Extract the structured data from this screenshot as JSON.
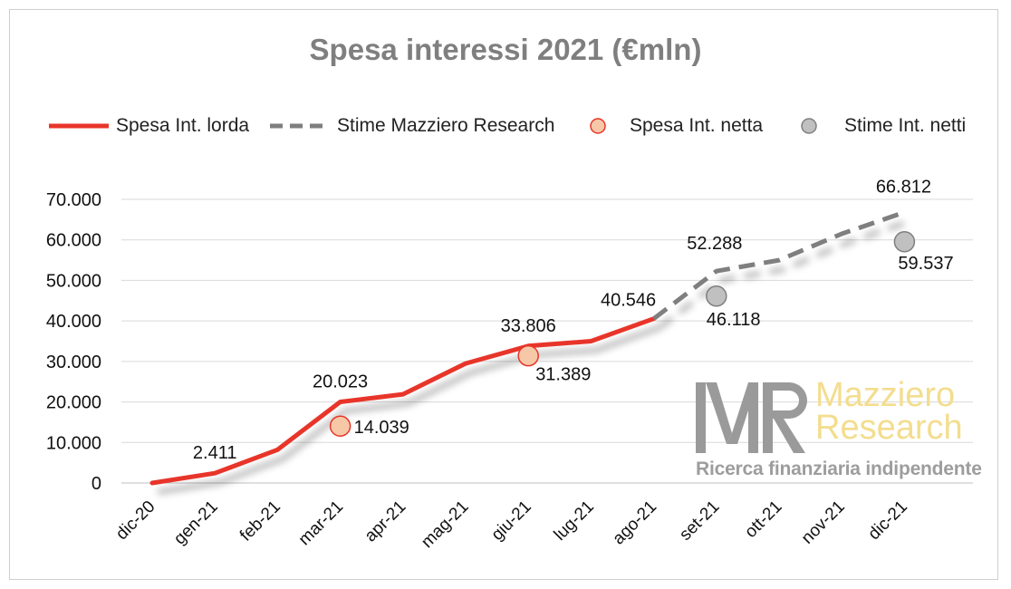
{
  "chart_data": {
    "type": "line",
    "title": "Spesa interessi 2021 (€mln)",
    "categories": [
      "dic-20",
      "gen-21",
      "feb-21",
      "mar-21",
      "apr-21",
      "mag-21",
      "giu-21",
      "lug-21",
      "ago-21",
      "set-21",
      "ott-21",
      "nov-21",
      "dic-21"
    ],
    "y_ticks": [
      "0",
      "10.000",
      "20.000",
      "30.000",
      "40.000",
      "50.000",
      "60.000",
      "70.000"
    ],
    "ylim": [
      0,
      70000
    ],
    "grid": true,
    "legend_position": "top",
    "series": [
      {
        "name": "Spesa Int. lorda",
        "style": "solid-line",
        "color": "#e8352a",
        "values": [
          0,
          2411,
          8200,
          20023,
          21900,
          29500,
          33806,
          35000,
          40546,
          null,
          null,
          null,
          null
        ],
        "labels": [
          null,
          "2.411",
          null,
          "20.023",
          null,
          null,
          "33.806",
          null,
          "40.546",
          null,
          null,
          null,
          null
        ]
      },
      {
        "name": "Stime Mazziero Research",
        "style": "dashed-line",
        "color": "#7f7f7f",
        "values": [
          null,
          null,
          null,
          null,
          null,
          null,
          null,
          null,
          40546,
          52288,
          55000,
          61500,
          66812
        ],
        "labels": [
          null,
          null,
          null,
          null,
          null,
          null,
          null,
          null,
          null,
          "52.288",
          null,
          null,
          "66.812"
        ]
      },
      {
        "name": "Spesa Int. netta",
        "style": "marker",
        "color": "#f7c8a8",
        "edge": "#e8352a",
        "values": [
          null,
          null,
          null,
          14039,
          null,
          null,
          31389,
          null,
          null,
          null,
          null,
          null,
          null
        ],
        "labels": [
          null,
          null,
          null,
          "14.039",
          null,
          null,
          "31.389",
          null,
          null,
          null,
          null,
          null,
          null
        ]
      },
      {
        "name": "Stime Int. netti",
        "style": "marker",
        "color": "#c0c0c0",
        "edge": "#7f7f7f",
        "values": [
          null,
          null,
          null,
          null,
          null,
          null,
          null,
          null,
          null,
          46118,
          null,
          null,
          59537
        ],
        "labels": [
          null,
          null,
          null,
          null,
          null,
          null,
          null,
          null,
          null,
          "46.118",
          null,
          null,
          "59.537"
        ]
      }
    ]
  },
  "watermark": {
    "logo": "MR",
    "name_line1": "Mazziero",
    "name_line2": "Research",
    "tagline": "Ricerca finanziaria indipendente"
  }
}
